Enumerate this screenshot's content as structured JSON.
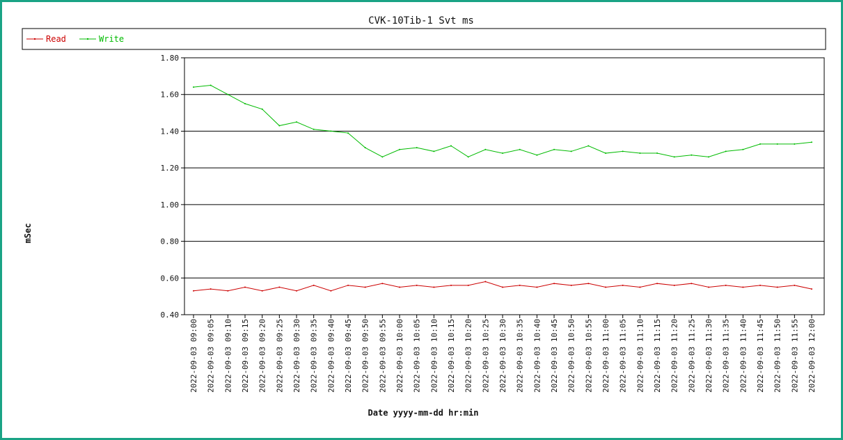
{
  "chart_data": {
    "type": "line",
    "title": "CVK-10Tib-1 Svt ms",
    "xlabel": "Date yyyy-mm-dd hr:min",
    "ylabel": "mSec",
    "ylim": [
      0.4,
      1.8
    ],
    "yticks": [
      "0.40",
      "0.60",
      "0.80",
      "1.00",
      "1.20",
      "1.40",
      "1.60",
      "1.80"
    ],
    "grid": true,
    "legend": "top-left",
    "x": [
      "2022-09-03 09:00",
      "2022-09-03 09:05",
      "2022-09-03 09:10",
      "2022-09-03 09:15",
      "2022-09-03 09:20",
      "2022-09-03 09:25",
      "2022-09-03 09:30",
      "2022-09-03 09:35",
      "2022-09-03 09:40",
      "2022-09-03 09:45",
      "2022-09-03 09:50",
      "2022-09-03 09:55",
      "2022-09-03 10:00",
      "2022-09-03 10:05",
      "2022-09-03 10:10",
      "2022-09-03 10:15",
      "2022-09-03 10:20",
      "2022-09-03 10:25",
      "2022-09-03 10:30",
      "2022-09-03 10:35",
      "2022-09-03 10:40",
      "2022-09-03 10:45",
      "2022-09-03 10:50",
      "2022-09-03 10:55",
      "2022-09-03 11:00",
      "2022-09-03 11:05",
      "2022-09-03 11:10",
      "2022-09-03 11:15",
      "2022-09-03 11:20",
      "2022-09-03 11:25",
      "2022-09-03 11:30",
      "2022-09-03 11:35",
      "2022-09-03 11:40",
      "2022-09-03 11:45",
      "2022-09-03 11:50",
      "2022-09-03 11:55",
      "2022-09-03 12:00"
    ],
    "series": [
      {
        "name": "Read",
        "color": "#cc0000",
        "values": [
          0.53,
          0.54,
          0.53,
          0.55,
          0.53,
          0.55,
          0.53,
          0.56,
          0.53,
          0.56,
          0.55,
          0.57,
          0.55,
          0.56,
          0.55,
          0.56,
          0.56,
          0.58,
          0.55,
          0.56,
          0.55,
          0.57,
          0.56,
          0.57,
          0.55,
          0.56,
          0.55,
          0.57,
          0.56,
          0.57,
          0.55,
          0.56,
          0.55,
          0.56,
          0.55,
          0.56,
          0.54
        ]
      },
      {
        "name": "Write",
        "color": "#00bb00",
        "values": [
          1.64,
          1.65,
          1.6,
          1.55,
          1.52,
          1.43,
          1.45,
          1.41,
          1.4,
          1.39,
          1.31,
          1.26,
          1.3,
          1.31,
          1.29,
          1.32,
          1.26,
          1.3,
          1.28,
          1.3,
          1.27,
          1.3,
          1.29,
          1.32,
          1.28,
          1.29,
          1.28,
          1.28,
          1.26,
          1.27,
          1.26,
          1.29,
          1.3,
          1.33,
          1.33,
          1.33,
          1.34
        ]
      }
    ]
  }
}
